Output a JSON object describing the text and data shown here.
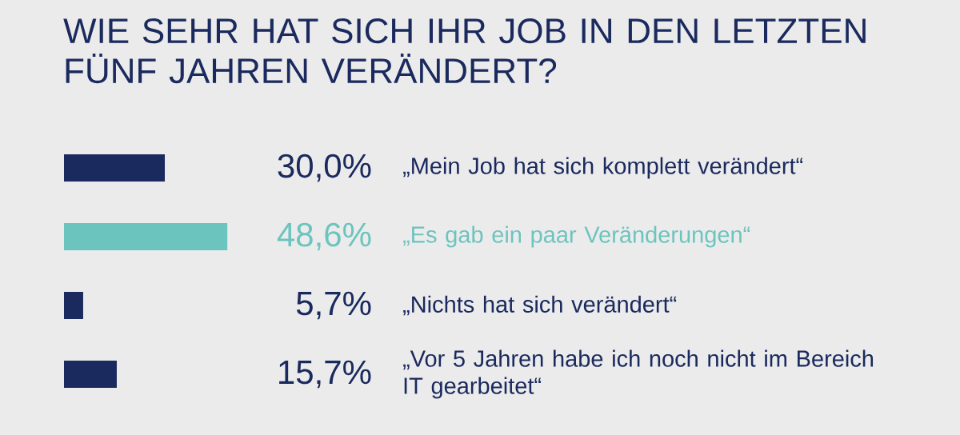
{
  "chart_data": {
    "type": "bar",
    "orientation": "horizontal",
    "title": "WIE SEHR HAT SICH IHR JOB IN DEN LETZTEN FÜNF JAHREN VERÄNDERT?",
    "categories": [
      "„Mein Job hat sich komplett verändert“",
      "„Es gab ein paar Veränderungen“",
      "„Nichts hat sich verändert“",
      "„Vor 5 Jahren habe ich noch nicht im Bereich IT gearbeitet“"
    ],
    "values": [
      30.0,
      48.6,
      5.7,
      15.7
    ],
    "colors": [
      "#1b2a5e",
      "#6cc4be",
      "#1b2a5e",
      "#1b2a5e"
    ],
    "value_labels": [
      "30,0%",
      "48,6%",
      "5,7%",
      "15,7%"
    ]
  }
}
